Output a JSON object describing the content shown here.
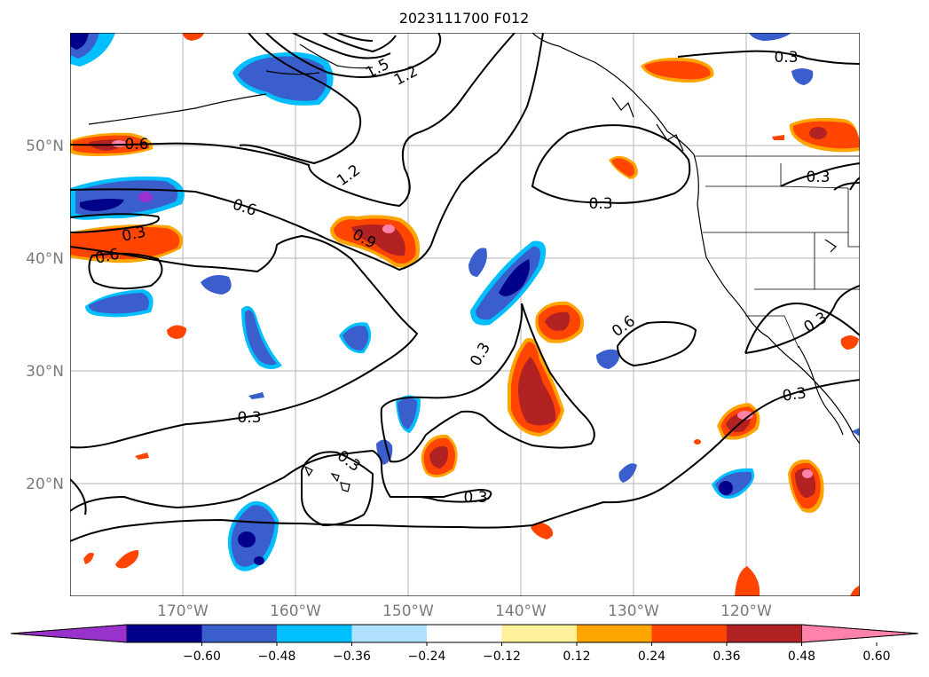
{
  "title": "2023111700 F012",
  "map": {
    "lon_range": [
      -180,
      -110
    ],
    "lat_range": [
      10,
      60
    ],
    "gridlines": true,
    "lat_labels": [
      "50°N",
      "40°N",
      "30°N",
      "20°N"
    ],
    "lon_labels": [
      "170°W",
      "160°W",
      "150°W",
      "140°W",
      "130°W",
      "120°W"
    ],
    "contour_labels": [
      "1.5",
      "1.2",
      "0.6",
      "1.2",
      "0.3",
      "0.6",
      "0.3",
      "0.9",
      "0.6",
      "0.3",
      "0.3",
      "0.6",
      "0.3",
      "0.3",
      "0.3",
      "0.3",
      "0.3"
    ]
  },
  "colorbar": {
    "ticks": [
      "−0.60",
      "−0.48",
      "−0.36",
      "−0.24",
      "−0.12",
      "0.12",
      "0.24",
      "0.36",
      "0.48",
      "0.60"
    ],
    "colors": [
      "#9932cc",
      "#00008b",
      "#3a5fcd",
      "#00bfff",
      "#b0e2ff",
      "#ffffff",
      "#fff09a",
      "#ffa500",
      "#ff4500",
      "#b22222",
      "#ff82ab"
    ]
  }
}
